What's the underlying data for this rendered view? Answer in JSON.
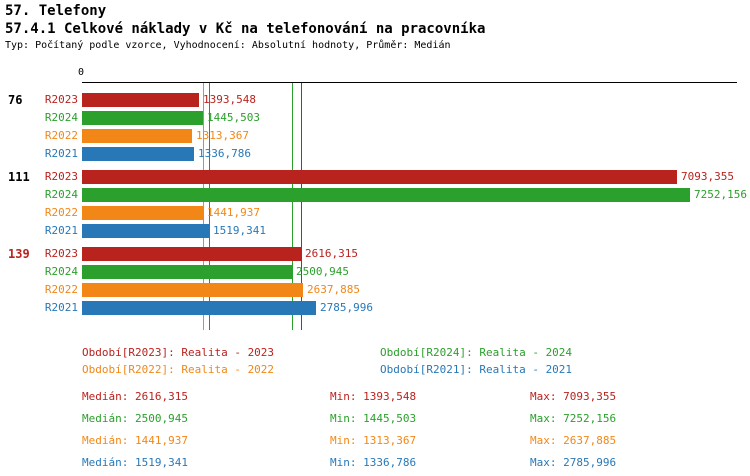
{
  "title": "57. Telefony",
  "subtitle": "57.4.1 Celkové náklady v Kč na telefonování na pracovníka",
  "meta": "Typ: Počítaný podle vzorce, Vyhodnocení: Absolutní hodnoty, Průměr: Medián",
  "axis": {
    "zero_label": "0"
  },
  "chart_data": {
    "type": "bar",
    "orientation": "horizontal",
    "value_unit": "Kč",
    "x_axis": {
      "min": 0,
      "tick_labels": [
        "0"
      ]
    },
    "series": [
      {
        "key": "R2023",
        "name": "Realita - 2023",
        "color": "#b9231e",
        "median": 2616.315
      },
      {
        "key": "R2024",
        "name": "Realita - 2024",
        "color": "#2ca02c",
        "median": 2500.945
      },
      {
        "key": "R2022",
        "name": "Realita - 2022",
        "color": "#f28718",
        "median": 1441.937
      },
      {
        "key": "R2021",
        "name": "Realita - 2021",
        "color": "#2878b8",
        "median": 1519.341
      }
    ],
    "groups": [
      {
        "id": "76",
        "highlighted": false,
        "bars": [
          {
            "series": "R2023",
            "value": 1393.548,
            "display": "1393,548"
          },
          {
            "series": "R2024",
            "value": 1445.503,
            "display": "1445,503"
          },
          {
            "series": "R2022",
            "value": 1313.367,
            "display": "1313,367"
          },
          {
            "series": "R2021",
            "value": 1336.786,
            "display": "1336,786"
          }
        ]
      },
      {
        "id": "111",
        "highlighted": false,
        "bars": [
          {
            "series": "R2023",
            "value": 7093.355,
            "display": "7093,355"
          },
          {
            "series": "R2024",
            "value": 7252.156,
            "display": "7252,156"
          },
          {
            "series": "R2022",
            "value": 1441.937,
            "display": "1441,937"
          },
          {
            "series": "R2021",
            "value": 1519.341,
            "display": "1519,341"
          }
        ]
      },
      {
        "id": "139",
        "highlighted": true,
        "bars": [
          {
            "series": "R2023",
            "value": 2616.315,
            "display": "2616,315"
          },
          {
            "series": "R2024",
            "value": 2500.945,
            "display": "2500,945"
          },
          {
            "series": "R2022",
            "value": 2637.885,
            "display": "2637,885"
          },
          {
            "series": "R2021",
            "value": 2785.996,
            "display": "2785,996"
          }
        ]
      }
    ]
  },
  "legend": [
    {
      "series": "R2023",
      "text": "Období[R2023]: Realita - 2023",
      "col": 0,
      "row": 0
    },
    {
      "series": "R2024",
      "text": "Období[R2024]: Realita - 2024",
      "col": 1,
      "row": 0
    },
    {
      "series": "R2022",
      "text": "Období[R2022]: Realita - 2022",
      "col": 0,
      "row": 1
    },
    {
      "series": "R2021",
      "text": "Období[R2021]: Realita - 2021",
      "col": 1,
      "row": 1
    }
  ],
  "stats": [
    {
      "series": "R2023",
      "median": "Medián: 2616,315",
      "min": "Min: 1393,548",
      "max": "Max: 7093,355"
    },
    {
      "series": "R2024",
      "median": "Medián: 2500,945",
      "min": "Min: 1445,503",
      "max": "Max: 7252,156"
    },
    {
      "series": "R2022",
      "median": "Medián: 1441,937",
      "min": "Min: 1313,367",
      "max": "Max: 2637,885"
    },
    {
      "series": "R2021",
      "median": "Medián: 1519,341",
      "min": "Min: 1336,786",
      "max": "Max: 2785,996"
    }
  ]
}
